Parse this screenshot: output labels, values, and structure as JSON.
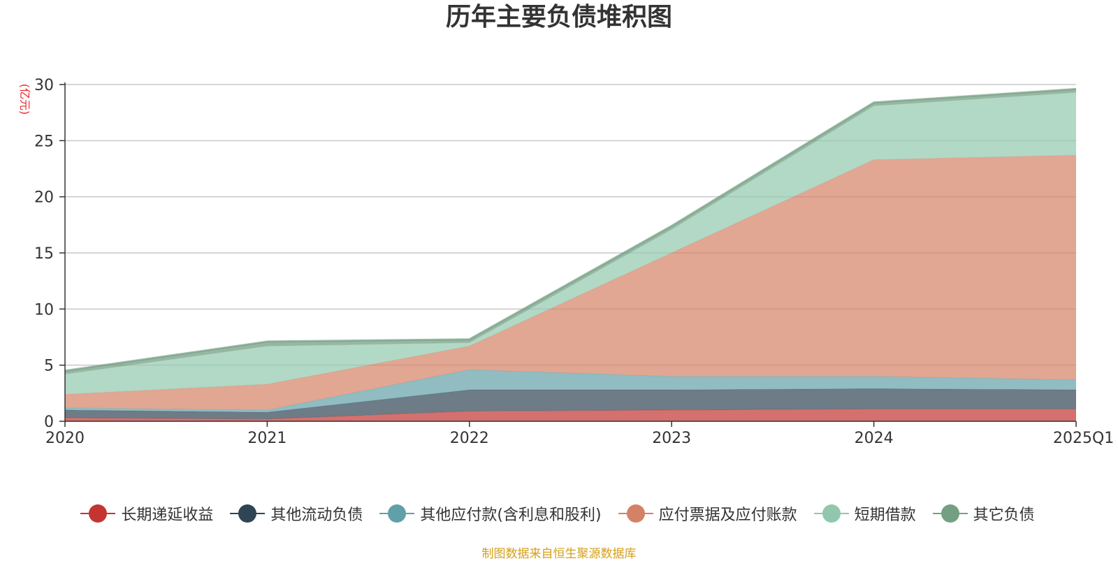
{
  "chart_data": {
    "type": "area",
    "stacked": true,
    "title": "历年主要负债堆积图",
    "ylabel": "(亿元)",
    "xlabel": "",
    "categories": [
      "2020",
      "2021",
      "2022",
      "2023",
      "2024",
      "2025Q1"
    ],
    "ylim": [
      0,
      30
    ],
    "yticks": [
      0,
      5,
      10,
      15,
      20,
      25,
      30
    ],
    "grid": true,
    "legend_position": "bottom",
    "series": [
      {
        "name": "长期递延收益",
        "color": "#c23531",
        "values": [
          0.3,
          0.2,
          0.9,
          1.0,
          1.1,
          1.1
        ]
      },
      {
        "name": "其他流动负债",
        "color": "#2f4554",
        "values": [
          0.7,
          0.6,
          1.9,
          1.8,
          1.8,
          1.7
        ]
      },
      {
        "name": "其他应付款(含利息和股利)",
        "color": "#61a0a8",
        "values": [
          0.2,
          0.2,
          1.8,
          1.2,
          1.1,
          0.9
        ]
      },
      {
        "name": "应付票据及应付账款",
        "color": "#d48265",
        "values": [
          1.2,
          2.3,
          2.1,
          11.0,
          19.3,
          20.0
        ]
      },
      {
        "name": "短期借款",
        "color": "#91c7ae",
        "values": [
          1.8,
          3.4,
          0.3,
          2.1,
          4.8,
          5.6
        ]
      },
      {
        "name": "其它负债",
        "color": "#749f83",
        "values": [
          0.3,
          0.4,
          0.3,
          0.3,
          0.3,
          0.3
        ]
      }
    ]
  },
  "source_note": "制图数据来自恒生聚源数据库"
}
